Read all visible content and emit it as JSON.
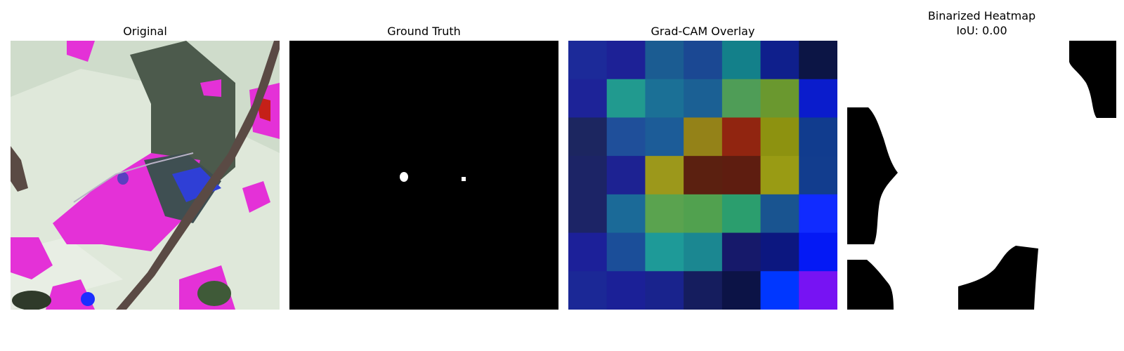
{
  "panels": [
    {
      "title": "Original",
      "image": "leaf-photo-color-distorted"
    },
    {
      "title": "Ground Truth",
      "image": "binary-mask-two-small-spots"
    },
    {
      "title": "Grad-CAM Overlay",
      "image": "7x7-heatmap-grid"
    },
    {
      "title": "Binarized Heatmap",
      "subtitle": "IoU: 0.00",
      "image": "binary-heatmap-mask"
    }
  ],
  "gradcam_grid": [
    [
      "#1c2a99",
      "#1d2196",
      "#1b5c92",
      "#1b4893",
      "#13808a",
      "#0f1f8c",
      "#0c1545"
    ],
    [
      "#1d2398",
      "#219a8f",
      "#1b7096",
      "#1b6094",
      "#4f9d57",
      "#6a982f",
      "#0a1ccc"
    ],
    [
      "#1c2660",
      "#1f4f9a",
      "#1c5c98",
      "#948218",
      "#912510",
      "#8d9210",
      "#113c8e"
    ],
    [
      "#1c2466",
      "#1d2292",
      "#9c981b",
      "#5b2010",
      "#5e1d10",
      "#999b14",
      "#123d8e"
    ],
    [
      "#1c2466",
      "#1b6a98",
      "#5aa34f",
      "#51a14f",
      "#2b9e6e",
      "#195490",
      "#102bff"
    ],
    [
      "#1c2099",
      "#1b4e99",
      "#1e9a98",
      "#1b8791",
      "#16196a",
      "#0c1780",
      "#0419f5"
    ],
    [
      "#1b2896",
      "#1b2097",
      "#19238d",
      "#151d5e",
      "#0c1346",
      "#0037ff",
      "#7713f3"
    ]
  ]
}
